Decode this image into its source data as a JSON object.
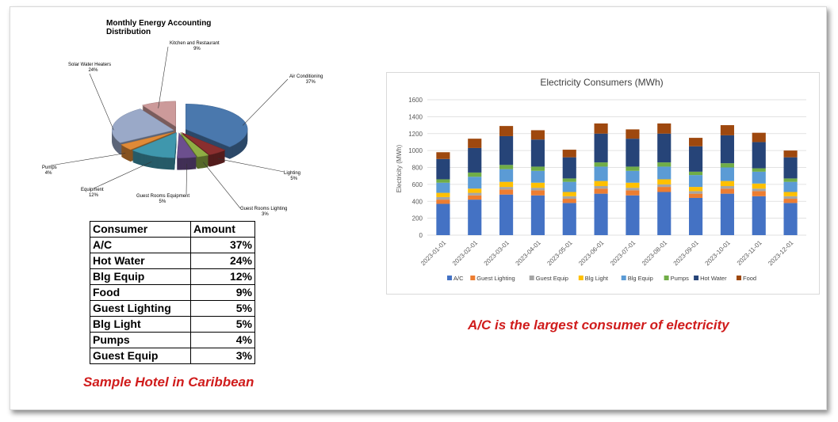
{
  "chart_data": [
    {
      "type": "pie",
      "title": "Monthly Energy Accounting Distribution",
      "categories": [
        "Air Conditioning",
        "Lighting",
        "Guest Rooms Lighting",
        "Guest Rooms Equipment",
        "Equipment",
        "Pumps",
        "Solar Water Heaters",
        "Kitchen and Restaurant"
      ],
      "values": [
        37,
        5,
        3,
        5,
        12,
        4,
        24,
        9
      ],
      "labels": [
        "37%",
        "5%",
        "3%",
        "5%",
        "12%",
        "4%",
        "24%",
        "9%"
      ],
      "colors": [
        "#4a78ad",
        "#8a2f2f",
        "#8fae44",
        "#6c4f8e",
        "#3f97ad",
        "#e08a37",
        "#9aa9c8",
        "#cc9a9a"
      ]
    },
    {
      "type": "bar",
      "stacked": true,
      "title": "Electricity Consumers (MWh)",
      "xlabel": "",
      "ylabel": "Electricity (MWh)",
      "ylim": [
        0,
        1600
      ],
      "yticks": [
        "0",
        "200",
        "400",
        "600",
        "800",
        "1000",
        "1200",
        "1400",
        "1600"
      ],
      "grid": true,
      "legend": "bottom",
      "categories": [
        "2023-01-01",
        "2023-02-01",
        "2023-03-01",
        "2023-04-01",
        "2023-05-01",
        "2023-06-01",
        "2023-07-01",
        "2023-08-01",
        "2023-09-01",
        "2023-10-01",
        "2023-11-01",
        "2023-12-01"
      ],
      "series": [
        {
          "name": "A/C",
          "color": "#4472c4",
          "values": [
            370,
            420,
            480,
            470,
            380,
            490,
            470,
            510,
            440,
            490,
            460,
            380
          ]
        },
        {
          "name": "Guest Lighting",
          "color": "#ed7d31",
          "values": [
            50,
            50,
            60,
            60,
            50,
            60,
            60,
            60,
            50,
            60,
            60,
            50
          ]
        },
        {
          "name": "Guest Equip",
          "color": "#a5a5a5",
          "values": [
            30,
            30,
            30,
            30,
            30,
            30,
            30,
            30,
            30,
            30,
            30,
            30
          ]
        },
        {
          "name": "Blg Light",
          "color": "#ffc000",
          "values": [
            50,
            50,
            60,
            60,
            50,
            60,
            60,
            60,
            50,
            60,
            60,
            50
          ]
        },
        {
          "name": "Blg Equip",
          "color": "#5b9bd5",
          "values": [
            120,
            140,
            150,
            140,
            120,
            170,
            140,
            150,
            140,
            160,
            140,
            120
          ]
        },
        {
          "name": "Pumps",
          "color": "#70ad47",
          "values": [
            40,
            50,
            50,
            50,
            40,
            50,
            50,
            50,
            40,
            50,
            40,
            40
          ]
        },
        {
          "name": "Hot Water",
          "color": "#264478",
          "values": [
            240,
            290,
            340,
            320,
            250,
            340,
            330,
            340,
            300,
            330,
            310,
            250
          ]
        },
        {
          "name": "Food",
          "color": "#9e480e",
          "values": [
            80,
            110,
            120,
            110,
            90,
            120,
            110,
            120,
            100,
            120,
            110,
            80
          ]
        }
      ]
    }
  ],
  "table": {
    "headers": [
      "Consumer",
      "Amount"
    ],
    "rows": [
      [
        "A/C",
        "37%"
      ],
      [
        "Hot Water",
        "24%"
      ],
      [
        "Blg Equip",
        "12%"
      ],
      [
        "Food",
        "9%"
      ],
      [
        "Guest Lighting",
        "5%"
      ],
      [
        "Blg Light",
        "5%"
      ],
      [
        "Pumps",
        "4%"
      ],
      [
        "Guest Equip",
        "3%"
      ]
    ]
  },
  "captions": {
    "left": "Sample Hotel in Caribbean",
    "right": "A/C is the largest consumer of electricity"
  }
}
